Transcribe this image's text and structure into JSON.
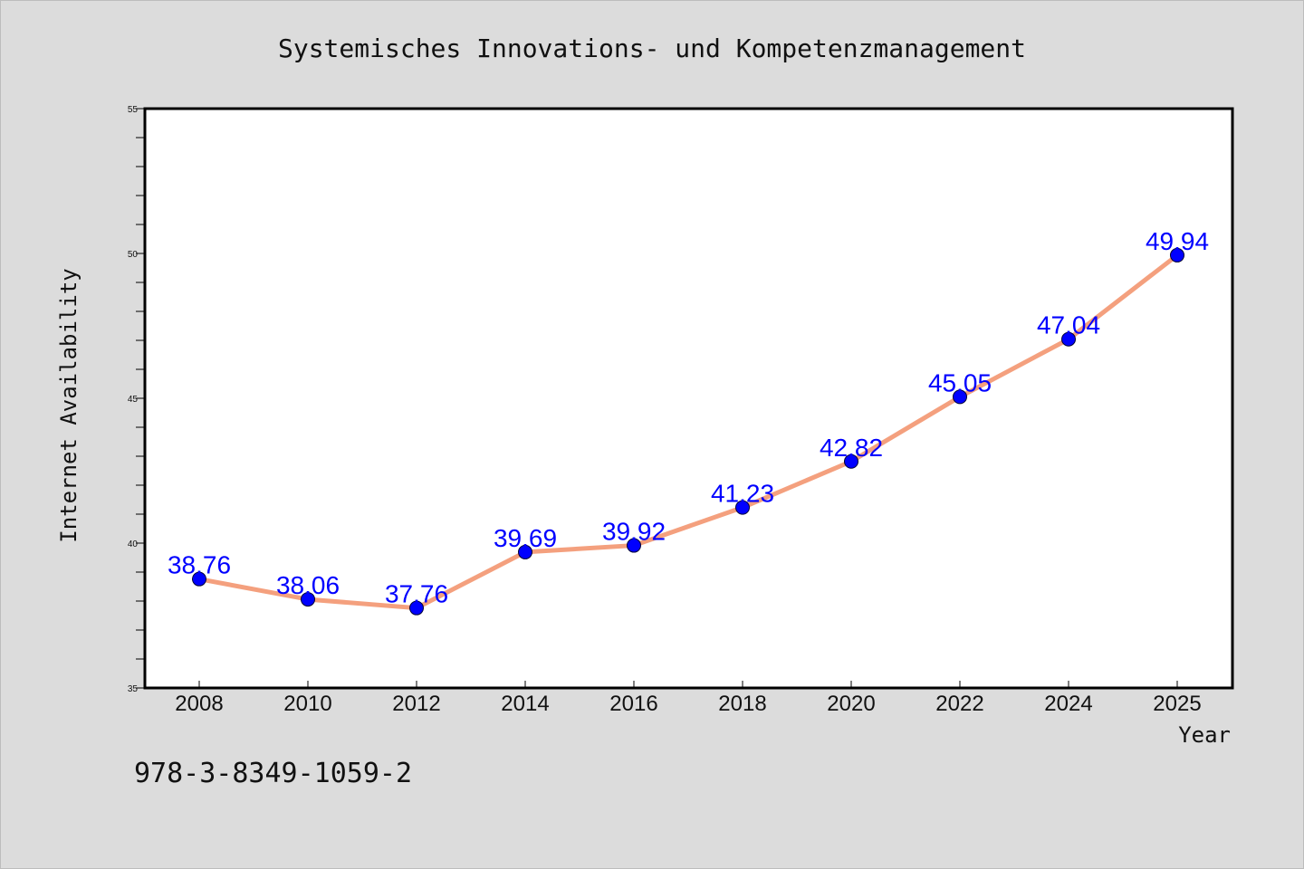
{
  "chart_data": {
    "type": "line",
    "title": "Systemisches Innovations- und Kompetenzmanagement",
    "xlabel": "Year",
    "ylabel": "Internet Availability",
    "categories": [
      "2008",
      "2010",
      "2012",
      "2014",
      "2016",
      "2018",
      "2020",
      "2022",
      "2024",
      "2025"
    ],
    "values": [
      38.76,
      38.06,
      37.76,
      39.69,
      39.92,
      41.23,
      42.82,
      45.05,
      47.04,
      49.94
    ],
    "data_labels": [
      "38.76",
      "38.06",
      "37.76",
      "39.69",
      "39.92",
      "41.23",
      "42.82",
      "45.05",
      "47.04",
      "49.94"
    ],
    "ylim": [
      35,
      55
    ],
    "y_ticks": [
      "35",
      "40",
      "45",
      "50",
      "55"
    ],
    "grid": false,
    "legend": "none",
    "line_color": "#f4a07e",
    "marker_color": "#0000ff",
    "label_color": "#0000ff"
  },
  "footer": {
    "isbn": "978-3-8349-1059-2"
  }
}
